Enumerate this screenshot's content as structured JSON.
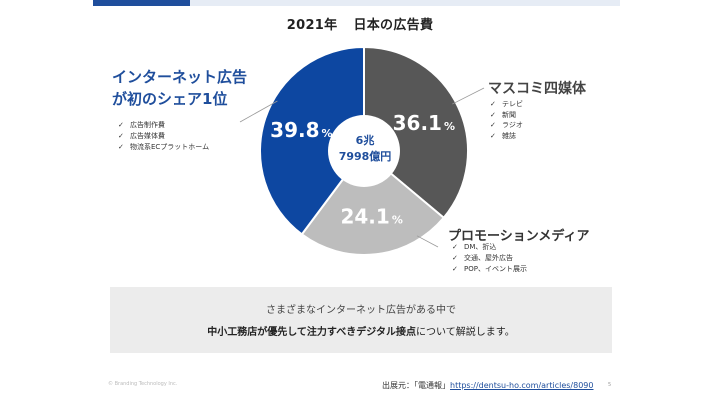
{
  "title": {
    "year": "2021年",
    "text": "日本の広告費"
  },
  "center": {
    "line1": "6兆",
    "line2": "7998億円"
  },
  "colors": {
    "internet": "#0d47a1",
    "mass": "#575757",
    "promo": "#bdbdbd",
    "brand": "#1f4e9c"
  },
  "chart_data": {
    "type": "pie",
    "title": "2021年 日本の広告費",
    "total_label": "6兆7998億円",
    "segments": [
      {
        "name": "マスコミ四媒体",
        "value": 36.1,
        "label": "36.1",
        "unit": "%",
        "items": [
          "テレビ",
          "新聞",
          "ラジオ",
          "雑誌"
        ]
      },
      {
        "name": "プロモーションメディア",
        "value": 24.1,
        "label": "24.1",
        "unit": "%",
        "items": [
          "DM、折込",
          "交通、屋外広告",
          "POP、イベント展示"
        ]
      },
      {
        "name": "インターネット広告",
        "value": 39.8,
        "label": "39.8",
        "unit": "%",
        "items": [
          "広告制作費",
          "広告媒体費",
          "物流系ECプラットホーム"
        ]
      }
    ]
  },
  "internet": {
    "line1": "インターネット広告",
    "line2": "が初のシェア1位"
  },
  "mass": {
    "heading": "マスコミ四媒体"
  },
  "promo": {
    "heading": "プロモーションメディア"
  },
  "summary": {
    "line1": "さまざまなインターネット広告がある中で",
    "bold": "中小工務店が優先して注力すべきデジタル接点",
    "rest": "について解説します。"
  },
  "footer": {
    "copyright": "© Branding Technology Inc.",
    "source_prefix": "出展元：「電通報」",
    "source_url": "https://dentsu-ho.com/articles/8090",
    "page": "5"
  }
}
